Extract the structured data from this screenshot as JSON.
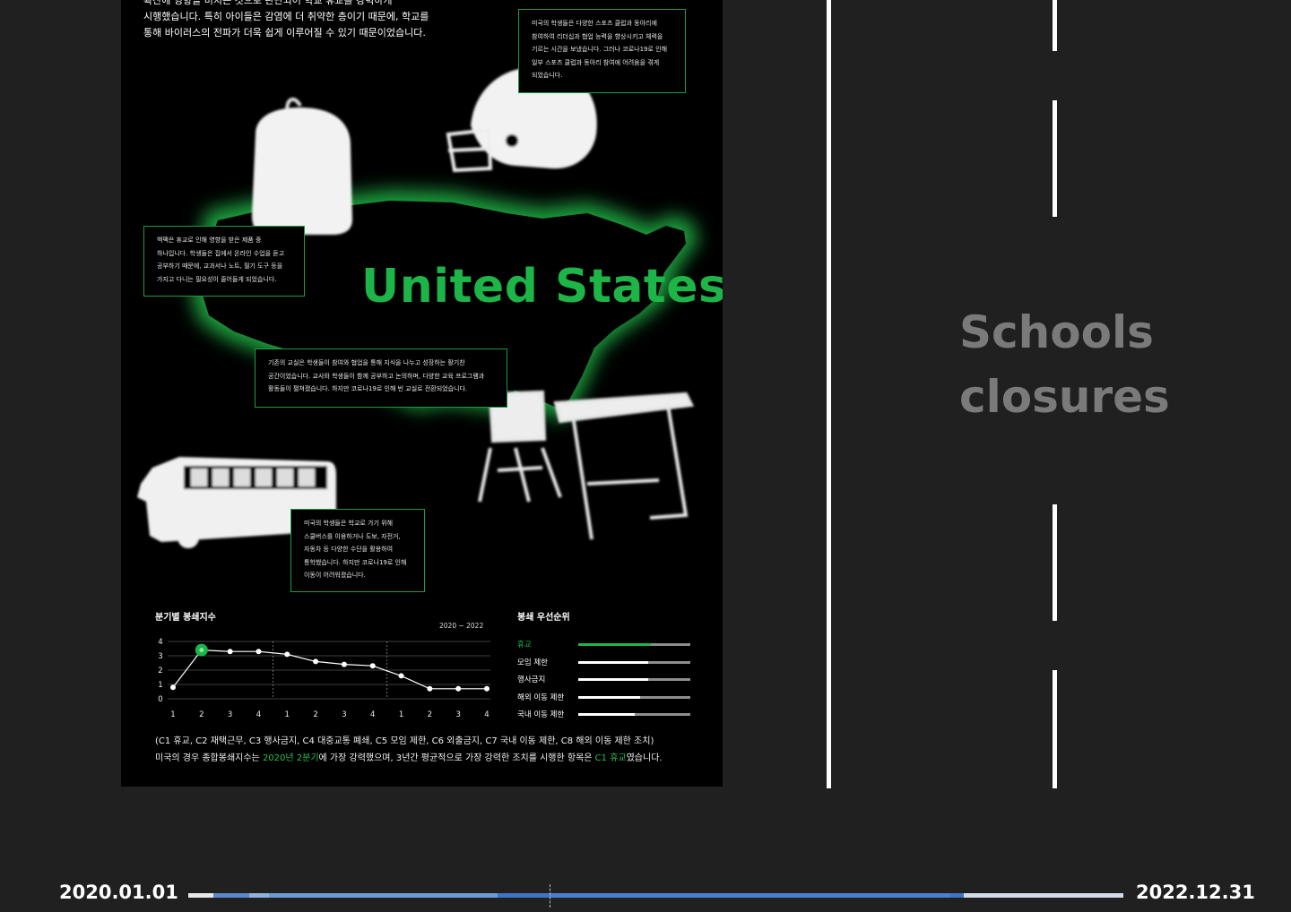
{
  "poster": {
    "intro_lines": [
      "확산에 영향을 미치는 것으로 판단되어 학교 휴교를 강력하게",
      "시행했습니다. 특히 아이들은 감염에 더 취약한 층이기 때문에, 학교를",
      "통해 바이러스의 전파가 더욱 쉽게 이루어질 수 있기 때문이었습니다."
    ],
    "map_title": "United States",
    "notes": {
      "sports": [
        "미국의 학생들은 다양한 스포츠 클럽과 동아리에",
        "참여하여 리더십과 협업 능력을 향상시키고 체력을",
        "기르는 시간을 보냈습니다. 그러나 코로나19로 인해",
        "일부 스포츠 클럽과 동아리 참여에 어려움을 겪게",
        "되었습니다."
      ],
      "backpack": [
        "백팩은 휴교로 인해 영향을 받은 제품 중",
        "하나입니다. 학생들은 집에서 온라인 수업을 듣고",
        "공부하기 때문에, 교과서나 노트, 필기 도구 등을",
        "가지고 다니는 필요성이 줄어들게 되었습니다."
      ],
      "classroom": [
        "기존의 교실은 학생들이 참여와 협업을 통해 지식을 나누고 성장하는 활기찬",
        "공간이었습니다. 교사와 학생들이 함께 공부하고 논의하며, 다양한 교육 프로그램과",
        "활동들이 펼쳐졌습니다. 하지만 코로나19로 인해 빈 교실로 전환되었습니다."
      ],
      "bus": [
        "미국의 학생들은 학교로 가기 위해",
        "스쿨버스를 이용하거나 도보, 자전거,",
        "자동차 등 다양한 수단을 활용하여",
        "통학했습니다. 하지만 코로나19로 인해",
        "이동이 어려워졌습니다."
      ]
    },
    "chart_title": "분기별  봉쇄지수",
    "chart_range": "2020 ~ 2022",
    "rank_title": "봉쇄  우선순위",
    "ranking": [
      {
        "label": "휴교",
        "value": 0.65,
        "highlight": true
      },
      {
        "label": "모임 제한",
        "value": 0.62,
        "highlight": false
      },
      {
        "label": "행사금지",
        "value": 0.62,
        "highlight": false
      },
      {
        "label": "해외 이동 제한",
        "value": 0.55,
        "highlight": false
      },
      {
        "label": "국내 이동 제한",
        "value": 0.5,
        "highlight": false
      }
    ],
    "legend_line1": "(C1 휴교, C2 재택근무, C3 행사금지, C4 대중교통 폐쇄, C5 모임 제한, C6 외출금지, C7 국내 이동 제한, C8 해외 이동 제한 조치)",
    "legend_line2": {
      "p1": "미국의 경우 종합봉쇄지수는 ",
      "h1": "2020년 2분기",
      "p2": "에 가장 강력했으며, 3년간 평균적으로 가장 강력한 조치를 시행한 항목은 ",
      "h2": "C1 휴교",
      "p3": "였습니다."
    }
  },
  "chart_data": {
    "type": "line",
    "title": "분기별  봉쇄지수",
    "subtitle": "2020 ~ 2022",
    "x": [
      "1",
      "2",
      "3",
      "4",
      "1",
      "2",
      "3",
      "4",
      "1",
      "2",
      "3",
      "4"
    ],
    "y": [
      0.8,
      3.4,
      3.3,
      3.3,
      3.1,
      2.6,
      2.4,
      2.3,
      1.6,
      0.7,
      0.7,
      0.7
    ],
    "yticks": [
      0,
      1,
      2,
      3,
      4
    ],
    "ylim": [
      0,
      4
    ],
    "highlight_index": 1,
    "year_dividers_after": [
      4,
      8
    ],
    "grid": true
  },
  "side": {
    "title_line1": "Schools",
    "title_line2": "closures"
  },
  "timeline": {
    "start": "2020.01.01",
    "end": "2022.12.31"
  },
  "colors": {
    "accent_green": "#1eb548",
    "background": "#202020",
    "poster": "#000000",
    "timeline_blue": "#4a7fd0",
    "timeline_light": "#c8d6ea"
  }
}
